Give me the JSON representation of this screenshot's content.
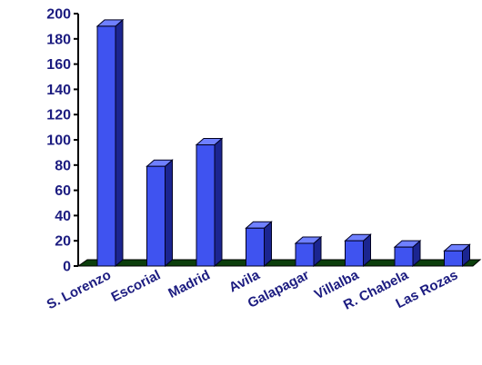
{
  "chart_data": {
    "type": "bar",
    "categories": [
      "S. Lorenzo",
      "Escorial",
      "Madrid",
      "Avila",
      "Galapagar",
      "Villalba",
      "R. Chabela",
      "Las Rozas"
    ],
    "values": [
      190,
      79,
      96,
      30,
      18,
      20,
      15,
      12
    ],
    "ylim": [
      0,
      200
    ],
    "yticks": [
      "0",
      "20",
      "40",
      "60",
      "80",
      "100",
      "120",
      "140",
      "160",
      "180",
      "200"
    ],
    "grid": false,
    "legend": "none",
    "colors": {
      "bar_front": "#3f53f0",
      "bar_side": "#1b2590",
      "bar_top": "#6f80ff",
      "bar_outline": "#000020",
      "floor": "#0c3f0c",
      "axis": "#000000",
      "text": "#1c1c80"
    }
  }
}
